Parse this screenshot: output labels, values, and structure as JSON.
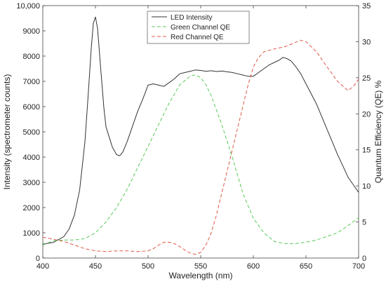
{
  "chart_data": {
    "type": "line",
    "xlabel": "Wavelength (nm)",
    "ylabel_left": "Intensity (spectrometer counts)",
    "ylabel_right": "Quantum Efficiency (QE) %",
    "xlim": [
      400,
      700
    ],
    "ylim_left": [
      0,
      10000
    ],
    "ylim_right": [
      0,
      35
    ],
    "x_ticks": [
      400,
      450,
      500,
      550,
      600,
      650,
      700
    ],
    "x_tick_labels": [
      "400",
      "450",
      "500",
      "550",
      "600",
      "650",
      "700"
    ],
    "y_left_ticks": [
      0,
      1000,
      2000,
      3000,
      4000,
      5000,
      6000,
      7000,
      8000,
      9000,
      10000
    ],
    "y_left_tick_labels": [
      "0",
      "1000",
      "2000",
      "3000",
      "4000",
      "5000",
      "6000",
      "7000",
      "8000",
      "9000",
      "10,000"
    ],
    "y_right_ticks": [
      0,
      5,
      10,
      15,
      20,
      25,
      30,
      35
    ],
    "y_right_tick_labels": [
      "0",
      "5",
      "10",
      "15",
      "20",
      "25",
      "30",
      "35"
    ],
    "grid": false,
    "legend_position": "top-center",
    "series": [
      {
        "name": "LED Intensity",
        "axis": "left",
        "color": "#333333",
        "dash": "solid",
        "x": [
          400,
          410,
          420,
          425,
          430,
          435,
          440,
          443,
          446,
          448,
          450,
          452,
          455,
          458,
          460,
          463,
          466,
          470,
          473,
          476,
          480,
          485,
          490,
          495,
          500,
          505,
          510,
          515,
          520,
          525,
          530,
          535,
          540,
          545,
          550,
          555,
          560,
          565,
          570,
          575,
          580,
          585,
          590,
          595,
          600,
          605,
          610,
          615,
          620,
          625,
          628,
          632,
          636,
          640,
          645,
          650,
          655,
          660,
          665,
          670,
          675,
          680,
          685,
          690,
          695,
          700
        ],
        "y": [
          550,
          620,
          850,
          1150,
          1700,
          2700,
          4600,
          6400,
          8300,
          9300,
          9550,
          9100,
          7500,
          5950,
          5200,
          4800,
          4400,
          4100,
          4050,
          4200,
          4600,
          5200,
          5800,
          6300,
          6850,
          6900,
          6850,
          6800,
          6950,
          7100,
          7300,
          7350,
          7400,
          7450,
          7430,
          7400,
          7420,
          7390,
          7410,
          7380,
          7350,
          7300,
          7250,
          7200,
          7200,
          7350,
          7500,
          7650,
          7750,
          7850,
          7950,
          7900,
          7800,
          7600,
          7300,
          6900,
          6500,
          6100,
          5600,
          5100,
          4600,
          4100,
          3650,
          3200,
          2900,
          2600
        ]
      },
      {
        "name": "Green Channel QE",
        "axis": "right",
        "color": "#5cc95c",
        "dash": "dashed",
        "x": [
          400,
          410,
          420,
          430,
          440,
          450,
          460,
          470,
          480,
          490,
          500,
          510,
          520,
          530,
          540,
          545,
          550,
          555,
          560,
          570,
          580,
          590,
          600,
          610,
          620,
          630,
          640,
          650,
          660,
          670,
          680,
          690,
          700
        ],
        "y": [
          1.8,
          2.4,
          2.5,
          2.5,
          2.7,
          3.5,
          5.0,
          7.0,
          9.5,
          12.5,
          15.5,
          18.5,
          21.5,
          24.0,
          25.2,
          25.4,
          25.0,
          24.0,
          22.5,
          18.5,
          14.0,
          9.0,
          5.5,
          3.5,
          2.3,
          2.0,
          2.0,
          2.2,
          2.5,
          3.0,
          3.5,
          4.5,
          5.6
        ]
      },
      {
        "name": "Red Channel QE",
        "axis": "right",
        "color": "#e05a4a",
        "dash": "dashed",
        "x": [
          400,
          410,
          420,
          430,
          440,
          450,
          460,
          470,
          480,
          490,
          500,
          505,
          510,
          515,
          520,
          525,
          530,
          535,
          540,
          545,
          550,
          555,
          560,
          565,
          570,
          575,
          580,
          585,
          590,
          595,
          600,
          605,
          610,
          620,
          630,
          640,
          645,
          650,
          660,
          670,
          680,
          690,
          695,
          700
        ],
        "y": [
          2.9,
          2.6,
          2.3,
          1.8,
          1.3,
          1.0,
          0.9,
          1.0,
          1.0,
          0.9,
          1.0,
          1.3,
          1.8,
          2.2,
          2.2,
          2.0,
          1.6,
          1.1,
          0.7,
          0.5,
          0.8,
          1.8,
          3.5,
          6.0,
          9.0,
          12.0,
          15.0,
          18.0,
          21.0,
          24.0,
          26.5,
          27.8,
          28.6,
          29.0,
          29.3,
          29.9,
          30.2,
          30.0,
          28.6,
          26.5,
          24.5,
          23.2,
          23.8,
          24.8
        ]
      }
    ]
  }
}
